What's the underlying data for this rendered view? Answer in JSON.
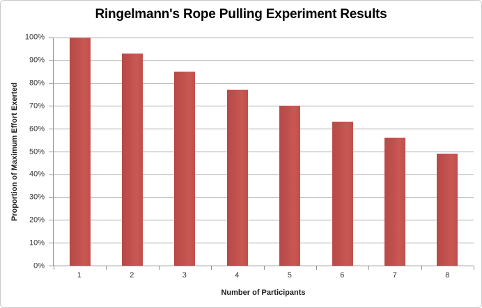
{
  "chart_data": {
    "type": "bar",
    "title": "Ringelmann's Rope Pulling Experiment Results",
    "categories": [
      "1",
      "2",
      "3",
      "4",
      "5",
      "6",
      "7",
      "8"
    ],
    "values": [
      100,
      93,
      85,
      77,
      70,
      63,
      56,
      49
    ],
    "xlabel": "Number of Participants",
    "ylabel": "Proportion of Maximum Effort Exerted",
    "ylim": [
      0,
      100
    ],
    "ytick_step": 10,
    "ytick_labels": [
      "0%",
      "10%",
      "20%",
      "30%",
      "40%",
      "50%",
      "60%",
      "70%",
      "80%",
      "90%",
      "100%"
    ],
    "grid": true,
    "legend": false,
    "colors": {
      "bar": "#C0504D",
      "gridline": "#A6A6A6",
      "axis": "#8C8C8C",
      "tick_text": "#333333",
      "label_text": "#1A1A1A"
    }
  }
}
